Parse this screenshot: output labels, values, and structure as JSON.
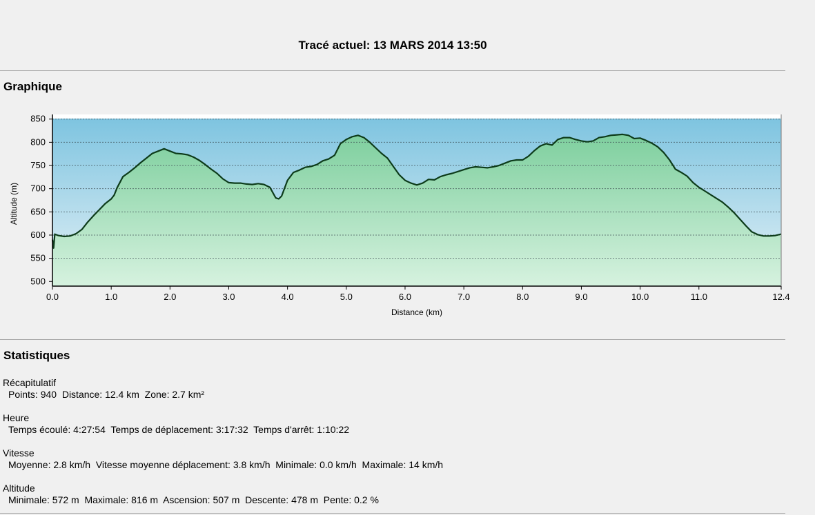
{
  "header": {
    "title": "Tracé actuel: 13 MARS 2014 13:50"
  },
  "graph_section": {
    "title": "Graphique"
  },
  "stats_section": {
    "title": "Statistiques",
    "groups": [
      {
        "heading": "Récapitulatif",
        "line": "Points: 940  Distance: 12.4 km  Zone: 2.7 km²"
      },
      {
        "heading": "Heure",
        "line": "Temps écoulé: 4:27:54  Temps de déplacement: 3:17:32  Temps d'arrêt: 1:10:22"
      },
      {
        "heading": "Vitesse",
        "line": "Moyenne: 2.8 km/h  Vitesse moyenne déplacement: 3.8 km/h  Minimale: 0.0 km/h  Maximale: 14 km/h"
      },
      {
        "heading": "Altitude",
        "line": "Minimale: 572 m  Maximale: 816 m  Ascension: 507 m  Descente: 478 m  Pente: 0.2 %"
      }
    ]
  },
  "colors": {
    "line": "#0d3b1a",
    "fill_top": "#7ecf9e",
    "fill_bottom": "#d6f2df",
    "sky_top": "#7ec4e0",
    "sky_bottom": "#e4f1f6"
  },
  "chart_data": {
    "type": "area",
    "xlabel": "Distance   (km)",
    "ylabel": "Altitude (m)",
    "xlim": [
      0,
      12.4
    ],
    "ylim": [
      490,
      860
    ],
    "x_ticks": [
      0,
      1,
      2,
      3,
      4,
      5,
      6,
      7,
      8,
      9,
      10,
      11,
      12.4
    ],
    "x_tick_labels": [
      "0.0",
      "1.0",
      "2.0",
      "3.0",
      "4.0",
      "5.0",
      "6.0",
      "7.0",
      "8.0",
      "9.0",
      "10.0",
      "11.0",
      "12.4"
    ],
    "y_ticks": [
      500,
      550,
      600,
      650,
      700,
      750,
      800,
      850
    ],
    "y_tick_labels": [
      "500",
      "550",
      "600",
      "650",
      "700",
      "750",
      "800",
      "850"
    ],
    "grid": true,
    "series": [
      {
        "x": [
          0,
          0.02,
          0.04,
          0.1,
          0.2,
          0.3,
          0.4,
          0.5,
          0.6,
          0.7,
          0.8,
          0.9,
          1.0,
          1.05,
          1.1,
          1.2,
          1.3,
          1.4,
          1.5,
          1.6,
          1.7,
          1.8,
          1.9,
          2.0,
          2.1,
          2.2,
          2.3,
          2.4,
          2.5,
          2.6,
          2.7,
          2.8,
          2.9,
          3.0,
          3.1,
          3.2,
          3.3,
          3.4,
          3.5,
          3.6,
          3.7,
          3.8,
          3.85,
          3.9,
          4.0,
          4.1,
          4.2,
          4.3,
          4.4,
          4.5,
          4.6,
          4.7,
          4.8,
          4.9,
          5.0,
          5.1,
          5.2,
          5.3,
          5.4,
          5.5,
          5.6,
          5.7,
          5.8,
          5.9,
          6.0,
          6.1,
          6.2,
          6.3,
          6.4,
          6.5,
          6.6,
          6.7,
          6.8,
          6.9,
          7.0,
          7.1,
          7.2,
          7.3,
          7.4,
          7.5,
          7.6,
          7.7,
          7.8,
          7.9,
          8.0,
          8.1,
          8.2,
          8.3,
          8.4,
          8.5,
          8.6,
          8.7,
          8.8,
          8.9,
          9.0,
          9.1,
          9.2,
          9.3,
          9.4,
          9.5,
          9.6,
          9.7,
          9.8,
          9.9,
          10.0,
          10.1,
          10.2,
          10.3,
          10.4,
          10.5,
          10.6,
          10.7,
          10.8,
          10.9,
          11.0,
          11.1,
          11.2,
          11.3,
          11.4,
          11.5,
          11.6,
          11.7,
          11.8,
          11.9,
          12.0,
          12.1,
          12.2,
          12.3,
          12.4
        ],
        "y": [
          590,
          572,
          602,
          599,
          597,
          598,
          603,
          612,
          628,
          642,
          655,
          668,
          678,
          686,
          702,
          726,
          735,
          745,
          756,
          766,
          776,
          781,
          786,
          781,
          776,
          775,
          773,
          768,
          761,
          752,
          742,
          733,
          721,
          713,
          712,
          712,
          710,
          709,
          711,
          709,
          703,
          680,
          678,
          684,
          718,
          735,
          740,
          746,
          748,
          752,
          760,
          764,
          772,
          797,
          806,
          812,
          815,
          810,
          800,
          788,
          776,
          766,
          748,
          730,
          718,
          712,
          708,
          712,
          720,
          719,
          726,
          730,
          733,
          737,
          741,
          745,
          747,
          746,
          745,
          747,
          750,
          755,
          760,
          762,
          762,
          770,
          782,
          792,
          797,
          794,
          806,
          810,
          810,
          806,
          803,
          801,
          803,
          810,
          812,
          815,
          816,
          817,
          815,
          808,
          809,
          804,
          798,
          790,
          778,
          762,
          742,
          735,
          727,
          713,
          703,
          695,
          687,
          679,
          671,
          660,
          648,
          634,
          620,
          607,
          601,
          598,
          598,
          599,
          602
        ]
      }
    ]
  }
}
